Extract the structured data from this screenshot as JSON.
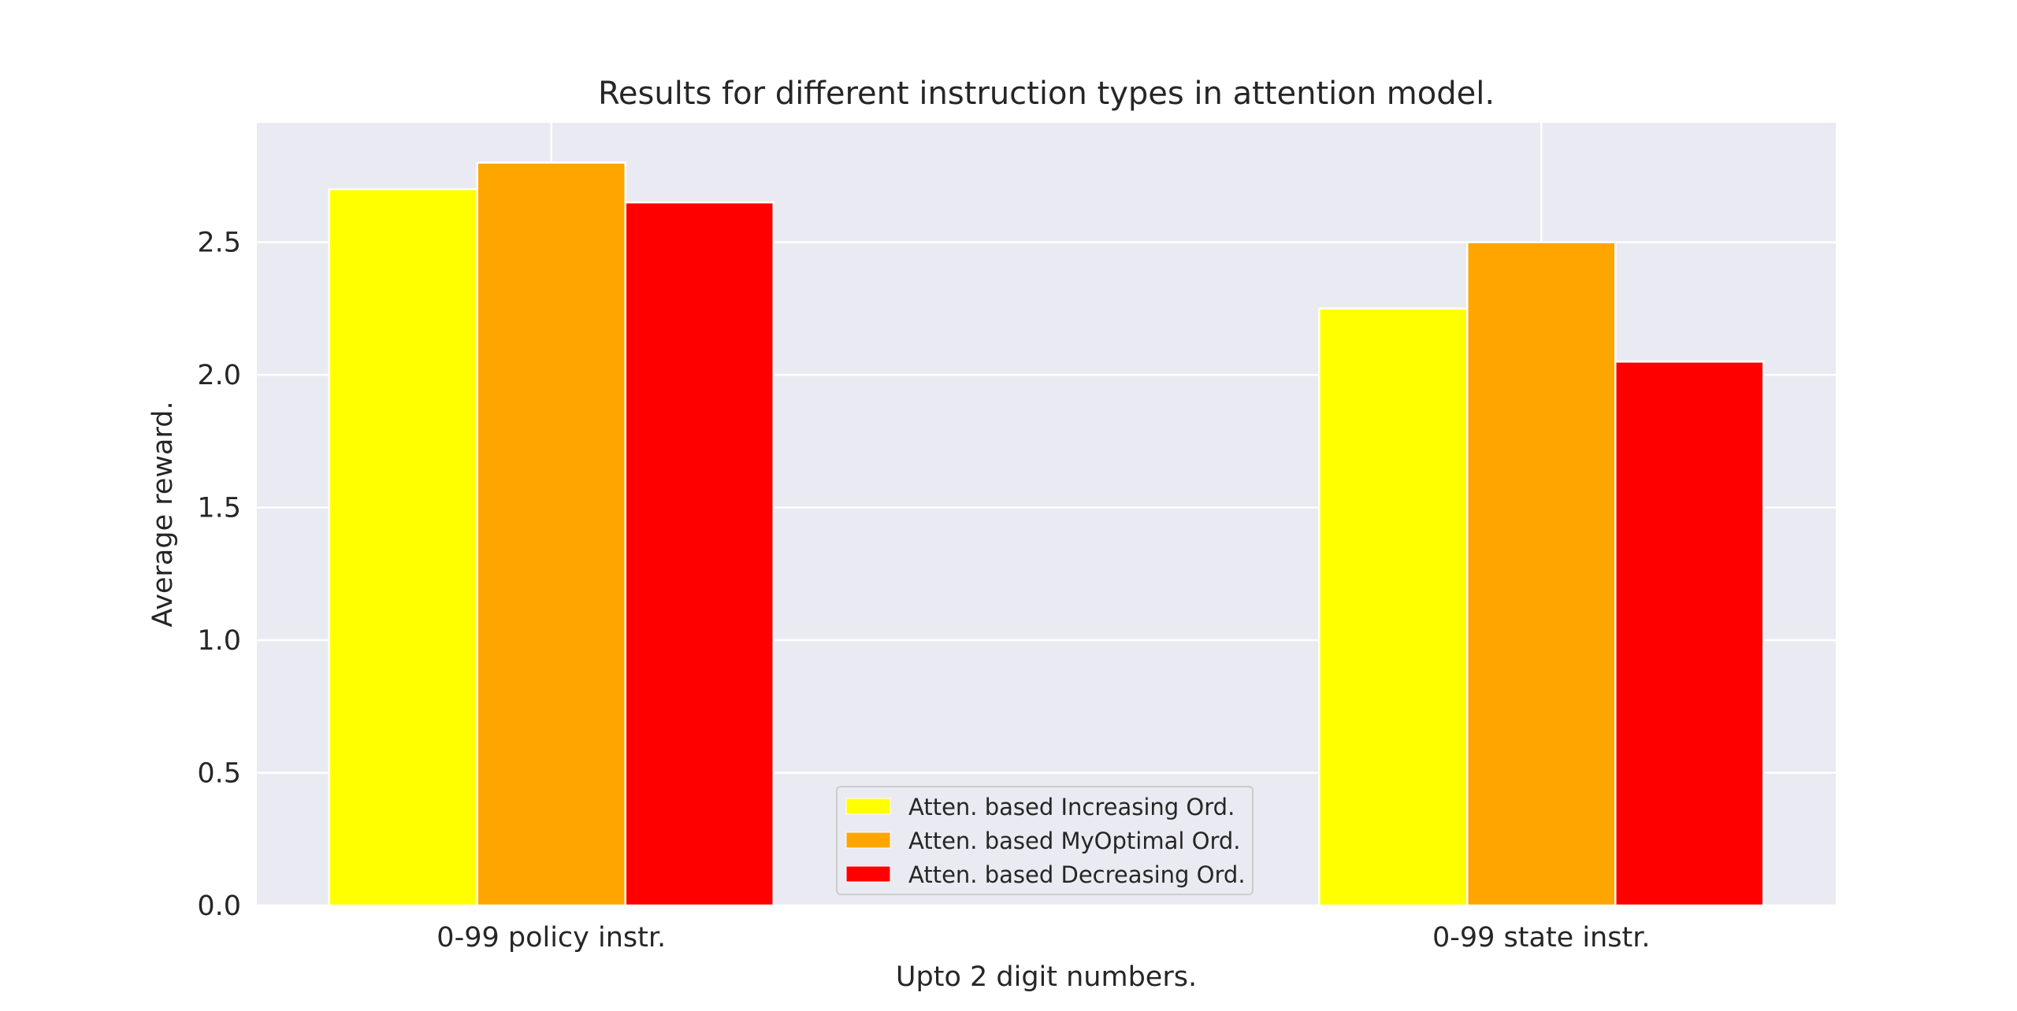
{
  "chart_data": {
    "type": "bar",
    "title": "Results for different instruction types in attention model.",
    "xlabel": "Upto 2 digit numbers.",
    "ylabel": "Average reward.",
    "categories": [
      "0-99 policy instr.",
      "0-99 state instr."
    ],
    "series": [
      {
        "name": "Atten. based Increasing Ord.",
        "color": "#ffff00",
        "values": [
          2.7,
          2.25
        ]
      },
      {
        "name": "Atten. based MyOptimal Ord.",
        "color": "#ffa500",
        "values": [
          2.8,
          2.5
        ]
      },
      {
        "name": "Atten. based Decreasing Ord.",
        "color": "#ff0000",
        "values": [
          2.65,
          2.05
        ]
      }
    ],
    "ylim": [
      0,
      2.95
    ],
    "yticks": [
      "0.0",
      "0.5",
      "1.0",
      "1.5",
      "2.0",
      "2.5"
    ],
    "grid": true,
    "legend_position": "lower-center",
    "background_color": "#eaeaf2"
  }
}
